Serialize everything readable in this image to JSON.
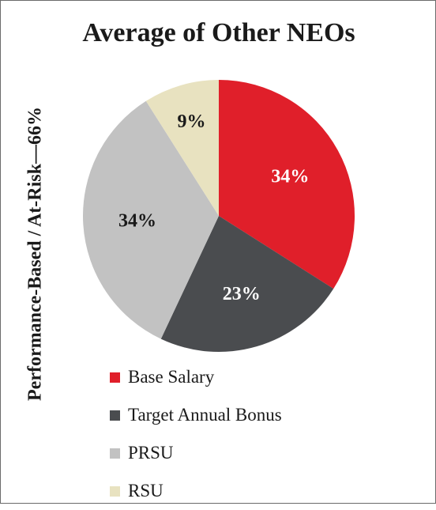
{
  "chart_data": {
    "type": "pie",
    "title": "Average of Other NEOs",
    "side_label": "Performance-Based / At-Risk—66%",
    "slices": [
      {
        "label": "Base Salary",
        "value": 34,
        "display": "34%",
        "color": "#e01f2a",
        "text_color": "#ffffff"
      },
      {
        "label": "Target Annual Bonus",
        "value": 23,
        "display": "23%",
        "color": "#4a4c4f",
        "text_color": "#ffffff"
      },
      {
        "label": "PRSU",
        "value": 34,
        "display": "34%",
        "color": "#c2c2c2",
        "text_color": "#1a1a1a"
      },
      {
        "label": "RSU",
        "value": 9,
        "display": "9%",
        "color": "#e8e2c0",
        "text_color": "#1a1a1a"
      }
    ],
    "start_angle": "12 o'clock",
    "direction": "clockwise",
    "legend_position": "bottom"
  }
}
